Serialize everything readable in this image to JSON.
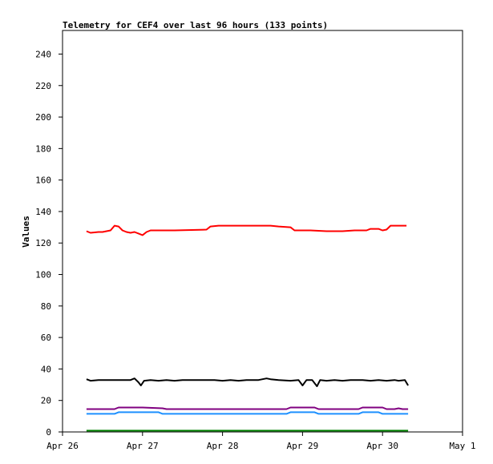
{
  "chart_data": {
    "type": "line",
    "title": "Telemetry for CEF4 over last 96 hours (133 points)",
    "ylabel": "Values",
    "xlabel": "",
    "ylim": [
      0,
      255
    ],
    "xlim": [
      "Apr 26",
      "May 1"
    ],
    "y_ticks": [
      0,
      20,
      40,
      60,
      80,
      100,
      120,
      140,
      160,
      180,
      200,
      220,
      240
    ],
    "x_ticks": [
      "Apr 26",
      "Apr 27",
      "Apr 28",
      "Apr 29",
      "Apr 30",
      "May 1"
    ],
    "grid": false,
    "legend": "none",
    "series": [
      {
        "color": "#ff0000",
        "points": [
          [
            26.3,
            127.5
          ],
          [
            26.35,
            126.5
          ],
          [
            26.45,
            127
          ],
          [
            26.5,
            127
          ],
          [
            26.6,
            128
          ],
          [
            26.65,
            131
          ],
          [
            26.7,
            130.5
          ],
          [
            26.75,
            128
          ],
          [
            26.8,
            127
          ],
          [
            26.85,
            126.5
          ],
          [
            26.9,
            127
          ],
          [
            26.95,
            126
          ],
          [
            27.0,
            125
          ],
          [
            27.05,
            127
          ],
          [
            27.1,
            128
          ],
          [
            27.2,
            128
          ],
          [
            27.4,
            128
          ],
          [
            27.8,
            128.5
          ],
          [
            27.85,
            130.5
          ],
          [
            27.95,
            131
          ],
          [
            28.1,
            131
          ],
          [
            28.6,
            131
          ],
          [
            28.7,
            130.5
          ],
          [
            28.85,
            130
          ],
          [
            28.9,
            128
          ],
          [
            29.1,
            128
          ],
          [
            29.3,
            127.5
          ],
          [
            29.5,
            127.5
          ],
          [
            29.65,
            128
          ],
          [
            29.8,
            128
          ],
          [
            29.85,
            129
          ],
          [
            29.95,
            129
          ],
          [
            30.0,
            128
          ],
          [
            30.05,
            128.5
          ],
          [
            30.1,
            131
          ],
          [
            30.3,
            131
          ]
        ]
      },
      {
        "color": "#000000",
        "points": [
          [
            26.3,
            33.5
          ],
          [
            26.35,
            32.5
          ],
          [
            26.45,
            33
          ],
          [
            26.55,
            33
          ],
          [
            26.7,
            33
          ],
          [
            26.85,
            33
          ],
          [
            26.9,
            34
          ],
          [
            26.95,
            31.5
          ],
          [
            26.98,
            29.5
          ],
          [
            27.02,
            32.5
          ],
          [
            27.1,
            33
          ],
          [
            27.2,
            32.5
          ],
          [
            27.3,
            33
          ],
          [
            27.4,
            32.5
          ],
          [
            27.5,
            33
          ],
          [
            27.7,
            33
          ],
          [
            27.9,
            33
          ],
          [
            28.0,
            32.5
          ],
          [
            28.1,
            33
          ],
          [
            28.2,
            32.5
          ],
          [
            28.3,
            33
          ],
          [
            28.45,
            33
          ],
          [
            28.55,
            34
          ],
          [
            28.6,
            33.5
          ],
          [
            28.7,
            33
          ],
          [
            28.85,
            32.5
          ],
          [
            28.95,
            33
          ],
          [
            29.0,
            29.5
          ],
          [
            29.05,
            33
          ],
          [
            29.12,
            33
          ],
          [
            29.18,
            29
          ],
          [
            29.22,
            33
          ],
          [
            29.3,
            32.5
          ],
          [
            29.4,
            33
          ],
          [
            29.5,
            32.5
          ],
          [
            29.6,
            33
          ],
          [
            29.75,
            33
          ],
          [
            29.85,
            32.5
          ],
          [
            29.95,
            33
          ],
          [
            30.05,
            32.5
          ],
          [
            30.15,
            33
          ],
          [
            30.2,
            32.5
          ],
          [
            30.28,
            33
          ],
          [
            30.32,
            29.5
          ]
        ]
      },
      {
        "color": "#800080",
        "points": [
          [
            26.3,
            14.5
          ],
          [
            26.65,
            14.5
          ],
          [
            26.7,
            15.5
          ],
          [
            27.0,
            15.5
          ],
          [
            27.25,
            15
          ],
          [
            27.3,
            14.5
          ],
          [
            28.8,
            14.5
          ],
          [
            28.85,
            15.5
          ],
          [
            29.15,
            15.5
          ],
          [
            29.2,
            14.5
          ],
          [
            29.7,
            14.5
          ],
          [
            29.75,
            15.5
          ],
          [
            30.0,
            15.5
          ],
          [
            30.05,
            14.5
          ],
          [
            30.15,
            14.5
          ],
          [
            30.2,
            15
          ],
          [
            30.25,
            14.5
          ],
          [
            30.32,
            14.5
          ]
        ]
      },
      {
        "color": "#1e90ff",
        "points": [
          [
            26.3,
            11.5
          ],
          [
            26.65,
            11.5
          ],
          [
            26.7,
            12.5
          ],
          [
            27.2,
            12.5
          ],
          [
            27.25,
            11.5
          ],
          [
            28.8,
            11.5
          ],
          [
            28.85,
            12.5
          ],
          [
            29.15,
            12.5
          ],
          [
            29.2,
            11.5
          ],
          [
            29.7,
            11.5
          ],
          [
            29.75,
            12.5
          ],
          [
            29.95,
            12.5
          ],
          [
            30.0,
            11.5
          ],
          [
            30.32,
            11.5
          ]
        ]
      },
      {
        "color": "#008000",
        "points": [
          [
            26.3,
            0.8
          ],
          [
            30.32,
            0.8
          ]
        ]
      }
    ]
  }
}
